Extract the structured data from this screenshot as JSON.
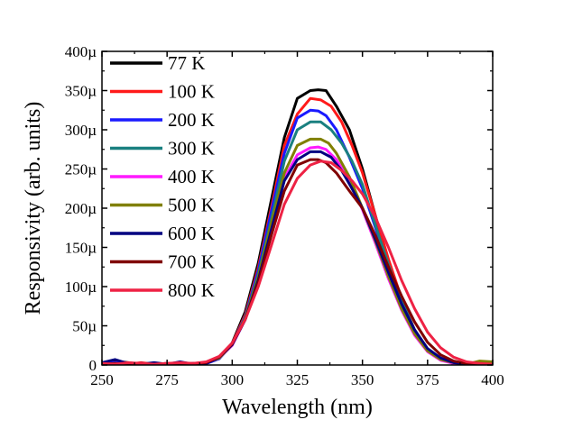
{
  "chart_data": {
    "type": "line",
    "title": "",
    "xlabel": "Wavelength (nm)",
    "ylabel": "Responsivity (arb. units)",
    "xlim": [
      250,
      400
    ],
    "ylim": [
      0,
      0.0004
    ],
    "xticks": [
      250,
      275,
      300,
      325,
      350,
      375,
      400
    ],
    "xtick_labels": [
      "250",
      "275",
      "300",
      "325",
      "350",
      "375",
      "400"
    ],
    "yticks": [
      0,
      5e-05,
      0.0001,
      0.00015,
      0.0002,
      0.00025,
      0.0003,
      0.00035,
      0.0004
    ],
    "ytick_labels": [
      "0",
      "50µ",
      "100µ",
      "150µ",
      "200µ",
      "250µ",
      "300µ",
      "350µ",
      "400µ"
    ],
    "grid": false,
    "legend_position": "top-left",
    "series": [
      {
        "name": "77 K",
        "color": "#000000",
        "x": [
          250,
          255,
          260,
          265,
          270,
          275,
          280,
          285,
          290,
          295,
          300,
          305,
          310,
          315,
          320,
          325,
          330,
          333,
          336,
          340,
          345,
          350,
          355,
          360,
          365,
          370,
          375,
          380,
          385,
          390,
          395,
          400
        ],
        "y": [
          2e-06,
          5e-06,
          3e-06,
          1e-06,
          2e-06,
          1e-06,
          2e-06,
          1e-06,
          2e-06,
          8e-06,
          2.8e-05,
          6.8e-05,
          0.00013,
          0.00021,
          0.00029,
          0.00034,
          0.00035,
          0.000351,
          0.00035,
          0.00033,
          0.0003,
          0.00025,
          0.00019,
          0.00013,
          8e-05,
          4.2e-05,
          1.8e-05,
          7e-06,
          2e-06,
          1e-06,
          1e-06,
          1e-06
        ]
      },
      {
        "name": "100 K",
        "color": "#ff1a1a",
        "x": [
          250,
          255,
          260,
          265,
          270,
          275,
          280,
          285,
          290,
          295,
          300,
          305,
          310,
          315,
          320,
          325,
          330,
          334,
          338,
          342,
          346,
          350,
          355,
          360,
          365,
          370,
          375,
          380,
          385,
          390,
          395,
          400
        ],
        "y": [
          1e-06,
          2e-06,
          1e-06,
          3e-06,
          1e-06,
          2e-06,
          1e-06,
          2e-06,
          3e-06,
          9e-06,
          2.7e-05,
          6.4e-05,
          0.000124,
          0.0002,
          0.00028,
          0.00032,
          0.00034,
          0.000338,
          0.00033,
          0.00031,
          0.00028,
          0.000245,
          0.00019,
          0.000135,
          8.5e-05,
          4.5e-05,
          2e-05,
          8e-06,
          3e-06,
          1e-06,
          1e-06,
          1e-06
        ]
      },
      {
        "name": "200 K",
        "color": "#1a1aff",
        "x": [
          250,
          255,
          260,
          265,
          270,
          275,
          280,
          285,
          290,
          295,
          300,
          305,
          310,
          315,
          320,
          325,
          330,
          333,
          336,
          340,
          345,
          350,
          355,
          360,
          365,
          370,
          375,
          380,
          385,
          390,
          395,
          400
        ],
        "y": [
          2e-06,
          3e-06,
          2e-06,
          1e-06,
          2e-06,
          1e-06,
          2e-06,
          1e-06,
          2e-06,
          8e-06,
          2.6e-05,
          6.2e-05,
          0.00012,
          0.000195,
          0.00027,
          0.000315,
          0.000325,
          0.000324,
          0.000318,
          0.0003,
          0.000265,
          0.000225,
          0.000175,
          0.000125,
          8e-05,
          4.3e-05,
          1.9e-05,
          7e-06,
          2e-06,
          1e-06,
          1e-06,
          1e-06
        ]
      },
      {
        "name": "300 K",
        "color": "#1a8080",
        "x": [
          250,
          255,
          260,
          265,
          270,
          275,
          280,
          285,
          290,
          295,
          300,
          305,
          310,
          315,
          320,
          325,
          330,
          334,
          338,
          342,
          346,
          350,
          355,
          360,
          365,
          370,
          375,
          380,
          385,
          390,
          395,
          400
        ],
        "y": [
          1e-06,
          2e-06,
          1e-06,
          2e-06,
          1e-06,
          2e-06,
          1e-06,
          2e-06,
          3e-06,
          9e-06,
          2.6e-05,
          6e-05,
          0.000115,
          0.000185,
          0.00026,
          0.0003,
          0.00031,
          0.00031,
          0.0003,
          0.000283,
          0.00026,
          0.00023,
          0.000178,
          0.000128,
          8.2e-05,
          4.5e-05,
          2e-05,
          8e-06,
          3e-06,
          1e-06,
          1e-06,
          1e-06
        ]
      },
      {
        "name": "400 K",
        "color": "#ff1aff",
        "x": [
          250,
          255,
          260,
          265,
          270,
          275,
          280,
          285,
          290,
          295,
          300,
          305,
          310,
          315,
          320,
          325,
          330,
          333,
          336,
          340,
          345,
          350,
          355,
          360,
          365,
          370,
          375,
          380,
          385,
          390,
          395,
          400
        ],
        "y": [
          1e-06,
          2e-06,
          1e-06,
          2e-06,
          1e-06,
          2e-06,
          1e-06,
          2e-06,
          3e-06,
          9e-06,
          2.5e-05,
          5.8e-05,
          0.00011,
          0.000175,
          0.000238,
          0.000268,
          0.000277,
          0.000278,
          0.000275,
          0.000262,
          0.000235,
          0.000198,
          0.000155,
          0.00011,
          7e-05,
          3.8e-05,
          1.7e-05,
          6e-06,
          2e-06,
          1e-06,
          1e-06,
          1e-06
        ]
      },
      {
        "name": "500 K",
        "color": "#808000",
        "x": [
          250,
          255,
          260,
          265,
          270,
          275,
          280,
          285,
          290,
          295,
          300,
          305,
          310,
          315,
          320,
          325,
          330,
          334,
          337,
          340,
          345,
          350,
          355,
          360,
          365,
          370,
          375,
          380,
          385,
          390,
          395,
          400
        ],
        "y": [
          2e-06,
          1e-06,
          2e-06,
          1e-06,
          2e-06,
          1e-06,
          2e-06,
          1e-06,
          3e-06,
          9e-06,
          2.6e-05,
          6e-05,
          0.000112,
          0.00018,
          0.000245,
          0.00028,
          0.000288,
          0.000288,
          0.000283,
          0.00027,
          0.00024,
          0.0002,
          0.000158,
          0.000113,
          7.2e-05,
          4e-05,
          1.8e-05,
          7e-06,
          3e-06,
          1e-06,
          5e-06,
          4e-06
        ]
      },
      {
        "name": "600 K",
        "color": "#000080",
        "x": [
          250,
          255,
          260,
          265,
          270,
          275,
          280,
          285,
          290,
          295,
          300,
          305,
          310,
          315,
          320,
          325,
          330,
          334,
          338,
          342,
          346,
          350,
          355,
          360,
          365,
          370,
          375,
          380,
          385,
          390,
          395,
          400
        ],
        "y": [
          3e-06,
          7e-06,
          2e-06,
          1e-06,
          3e-06,
          1e-06,
          4e-06,
          1e-06,
          2e-06,
          1e-05,
          2.6e-05,
          5.8e-05,
          0.000108,
          0.000172,
          0.000235,
          0.000262,
          0.000272,
          0.000272,
          0.000265,
          0.000248,
          0.000225,
          0.0002,
          0.00016,
          0.000118,
          7.8e-05,
          4.5e-05,
          2.1e-05,
          9e-06,
          3e-06,
          1e-06,
          1e-06,
          1e-06
        ]
      },
      {
        "name": "700 K",
        "color": "#800000",
        "x": [
          250,
          255,
          260,
          265,
          270,
          275,
          280,
          285,
          290,
          295,
          300,
          305,
          310,
          315,
          320,
          325,
          330,
          333,
          336,
          340,
          345,
          350,
          355,
          360,
          365,
          370,
          375,
          380,
          385,
          390,
          395,
          400
        ],
        "y": [
          1e-06,
          2e-06,
          1e-06,
          2e-06,
          1e-06,
          2e-06,
          1e-06,
          2e-06,
          3e-06,
          1e-05,
          2.7e-05,
          5.8e-05,
          0.000105,
          0.000165,
          0.000222,
          0.000255,
          0.000262,
          0.000262,
          0.000258,
          0.000245,
          0.000222,
          0.0002,
          0.000165,
          0.000125,
          8.8e-05,
          5.5e-05,
          2.9e-05,
          1.3e-05,
          5e-06,
          2e-06,
          1e-06,
          1e-06
        ]
      },
      {
        "name": "800 K",
        "color": "#ee2244",
        "x": [
          250,
          255,
          260,
          265,
          270,
          275,
          280,
          285,
          290,
          295,
          300,
          305,
          310,
          315,
          320,
          325,
          330,
          334,
          338,
          342,
          346,
          350,
          355,
          360,
          365,
          370,
          375,
          380,
          385,
          390,
          395,
          400
        ],
        "y": [
          2e-06,
          1e-06,
          3e-06,
          2e-06,
          1e-06,
          2e-06,
          3e-06,
          2e-06,
          4e-06,
          1.1e-05,
          2.8e-05,
          5.8e-05,
          0.0001,
          0.000152,
          0.000205,
          0.000238,
          0.000255,
          0.00026,
          0.000258,
          0.000248,
          0.000235,
          0.000218,
          0.000188,
          0.00015,
          0.000108,
          7.2e-05,
          4.2e-05,
          2.2e-05,
          1e-05,
          4e-06,
          2e-06,
          1e-06
        ]
      }
    ]
  }
}
